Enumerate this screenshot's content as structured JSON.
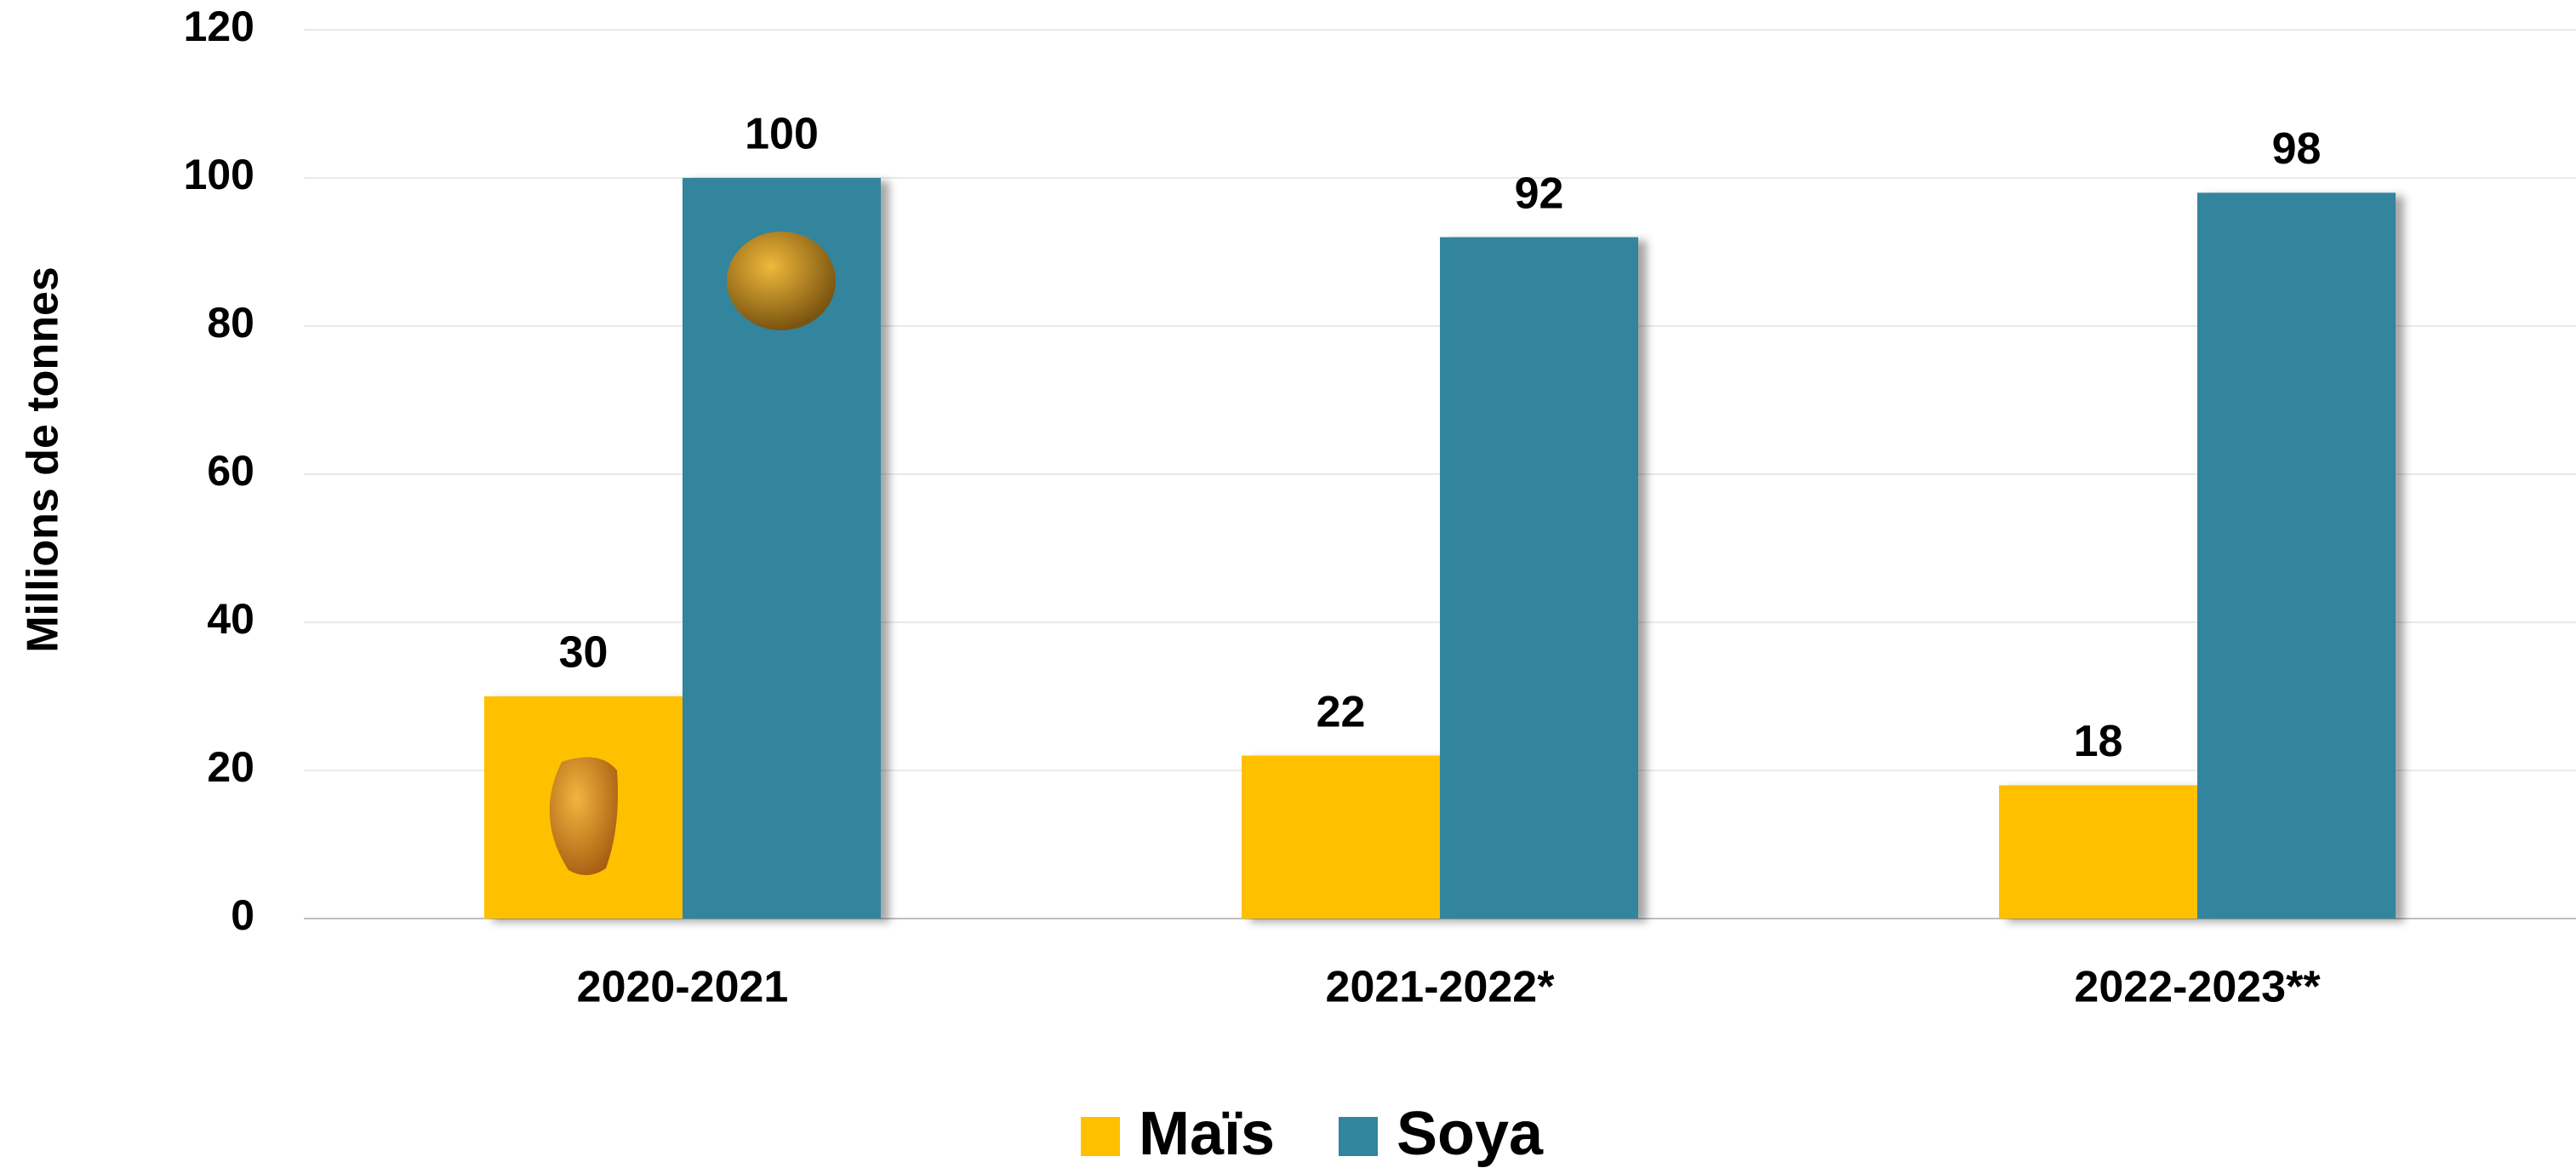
{
  "chart_data": {
    "type": "bar",
    "categories": [
      "2020-2021",
      "2021-2022*",
      "2022-2023**"
    ],
    "series": [
      {
        "name": "Maïs",
        "color": "#ffc000",
        "values": [
          30,
          22,
          18
        ]
      },
      {
        "name": "Soya",
        "color": "#31859c",
        "values": [
          100,
          92,
          98
        ]
      }
    ],
    "ylabel": "Millions de tonnes",
    "ylim": [
      0,
      120
    ],
    "yticks": [
      0,
      20,
      40,
      60,
      80,
      100,
      120
    ],
    "grid": true,
    "legend": "bottom"
  }
}
